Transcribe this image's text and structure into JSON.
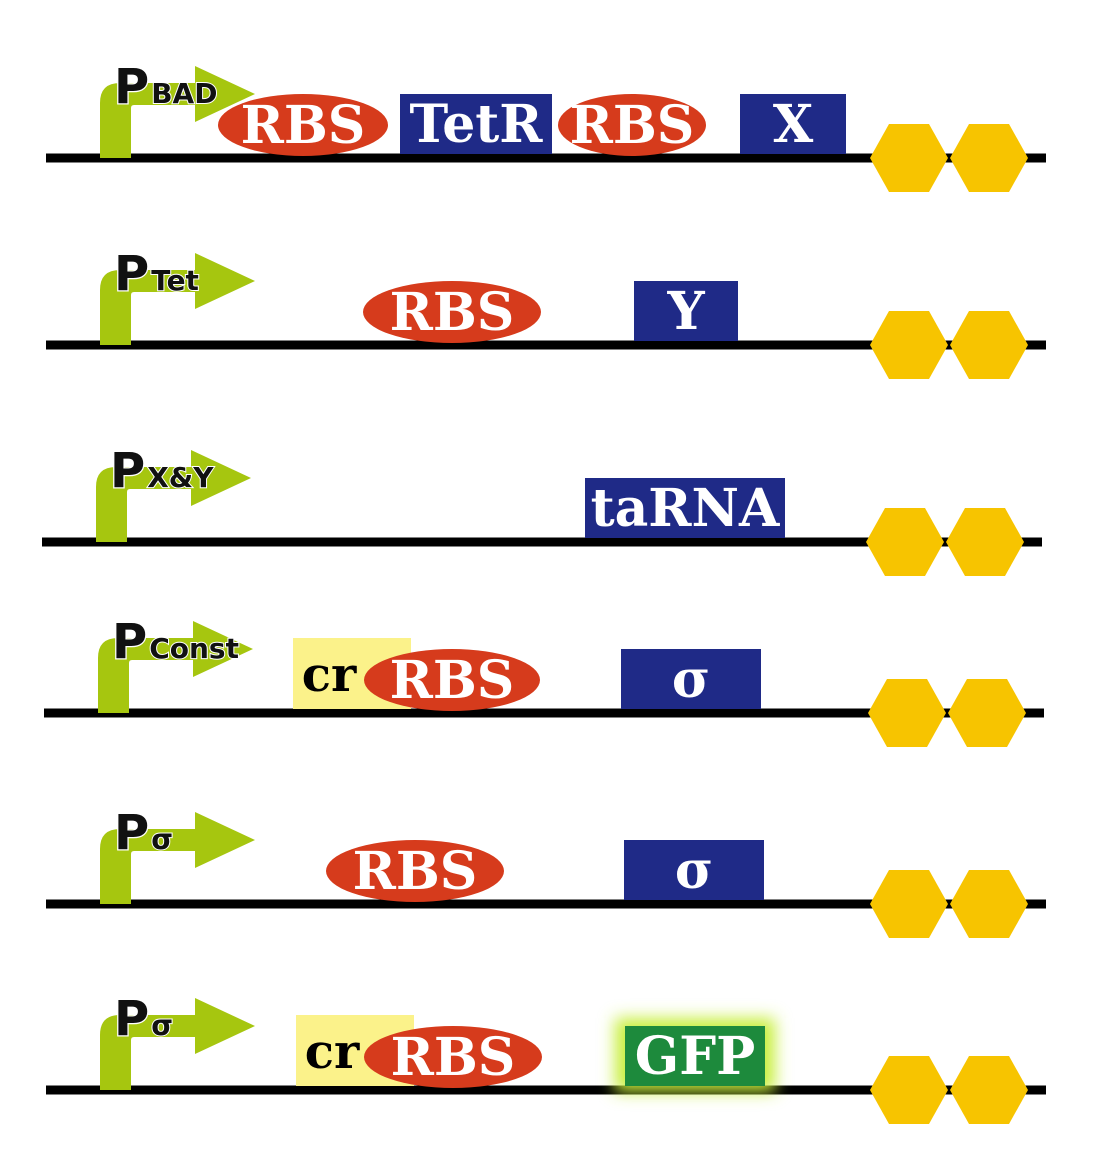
{
  "colors": {
    "backbone": "#000000",
    "promoter": "#a6c60f",
    "rbs": "#d63b1c",
    "cds": "#1f2a87",
    "gfp": "#1d8a3c",
    "gfp_glow": "#c8ef3c",
    "cr": "#fbf28a",
    "terminator": "#f7c400"
  },
  "constructs": [
    {
      "promoter": {
        "p": "P",
        "sub": "BAD"
      },
      "parts": [
        {
          "type": "rbs",
          "label": "RBS"
        },
        {
          "type": "cds",
          "label": "TetR"
        },
        {
          "type": "rbs",
          "label": "RBS"
        },
        {
          "type": "cds",
          "label": "X"
        }
      ],
      "terminator_icon": "double-hexagon-terminator-icon"
    },
    {
      "promoter": {
        "p": "P",
        "sub": "Tet"
      },
      "parts": [
        {
          "type": "rbs",
          "label": "RBS"
        },
        {
          "type": "cds",
          "label": "Y"
        }
      ],
      "terminator_icon": "double-hexagon-terminator-icon"
    },
    {
      "promoter": {
        "p": "P",
        "sub": "X&Y"
      },
      "parts": [
        {
          "type": "cds",
          "label": "taRNA"
        }
      ],
      "terminator_icon": "double-hexagon-terminator-icon"
    },
    {
      "promoter": {
        "p": "P",
        "sub": "Const"
      },
      "parts": [
        {
          "type": "cr",
          "label": "cr"
        },
        {
          "type": "rbs",
          "label": "RBS"
        },
        {
          "type": "cds",
          "label": "σ"
        }
      ],
      "terminator_icon": "double-hexagon-terminator-icon"
    },
    {
      "promoter": {
        "p": "P",
        "sub": "σ"
      },
      "parts": [
        {
          "type": "rbs",
          "label": "RBS"
        },
        {
          "type": "cds",
          "label": "σ"
        }
      ],
      "terminator_icon": "double-hexagon-terminator-icon"
    },
    {
      "promoter": {
        "p": "P",
        "sub": "σ"
      },
      "parts": [
        {
          "type": "cr",
          "label": "cr"
        },
        {
          "type": "rbs",
          "label": "RBS"
        },
        {
          "type": "gfp",
          "label": "GFP"
        }
      ],
      "terminator_icon": "double-hexagon-terminator-icon"
    }
  ]
}
